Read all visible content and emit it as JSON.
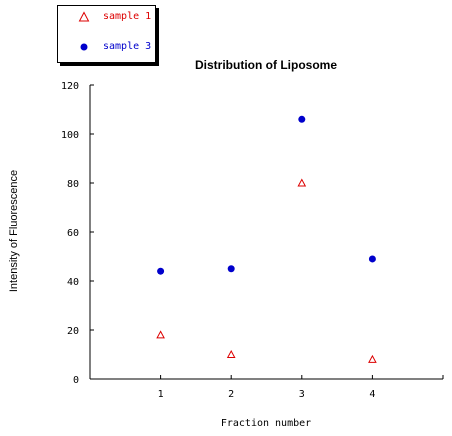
{
  "chart_data": {
    "type": "scatter",
    "title": "Distribution of Liposome",
    "xlabel": "Fraction number",
    "ylabel": "Intensity of Fluorescence",
    "xlim": [
      0,
      5
    ],
    "ylim": [
      0,
      120
    ],
    "x_ticks": [
      "1",
      "2",
      "3",
      "4"
    ],
    "y_ticks": [
      "0",
      "20",
      "40",
      "60",
      "80",
      "100",
      "120"
    ],
    "legend_position": "top-left",
    "series": [
      {
        "name": "sample 1",
        "marker": "open-triangle",
        "color": "#dd0000",
        "x": [
          1,
          2,
          3,
          4
        ],
        "y": [
          18,
          10,
          80,
          8
        ]
      },
      {
        "name": "sample 3",
        "marker": "filled-circle",
        "color": "#0000cc",
        "x": [
          1,
          2,
          3,
          4
        ],
        "y": [
          44,
          45,
          106,
          49
        ]
      }
    ]
  }
}
